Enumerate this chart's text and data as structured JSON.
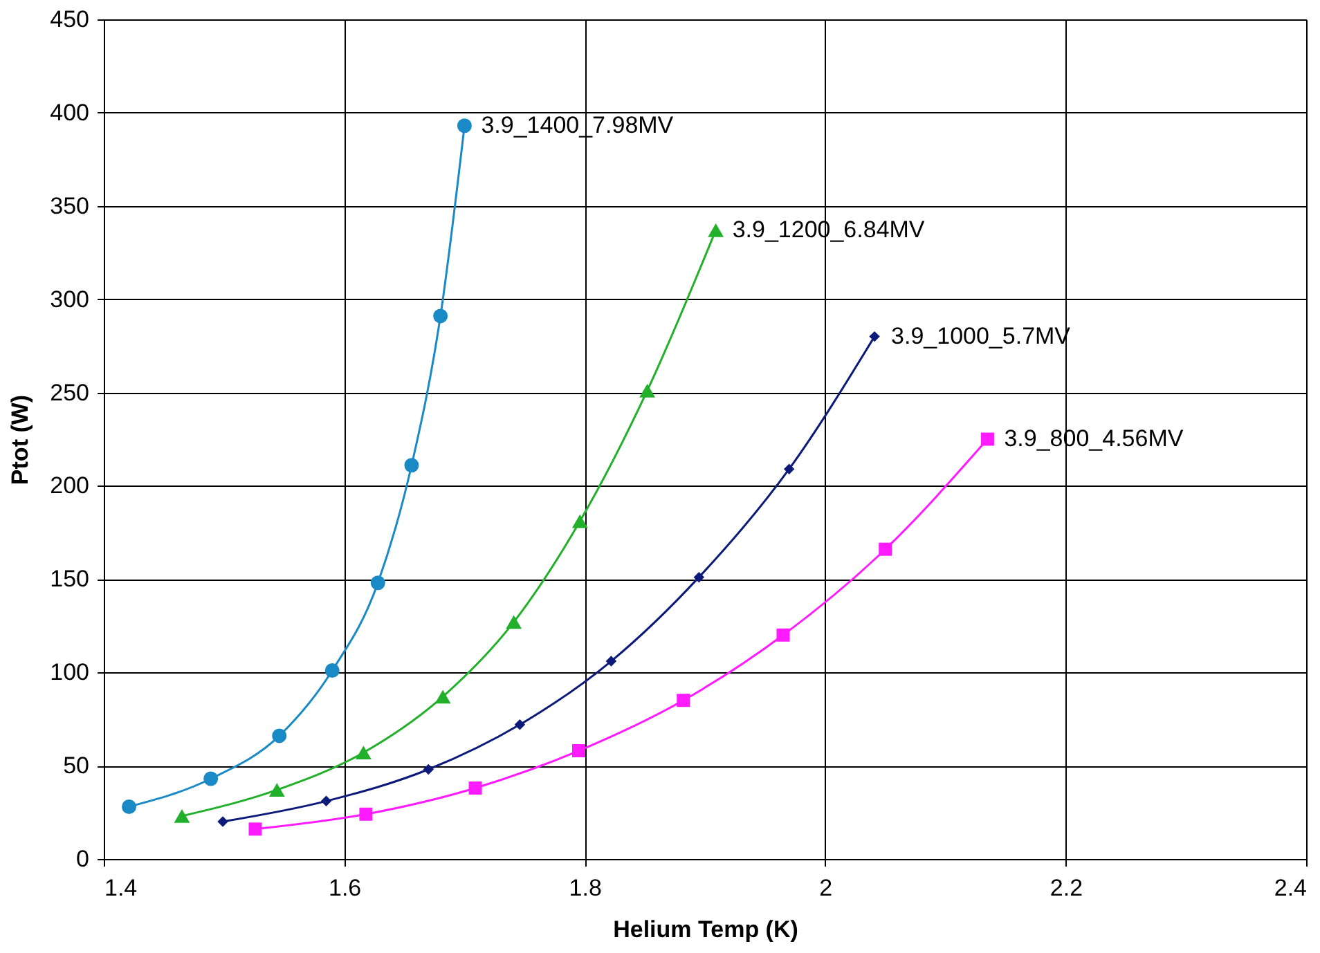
{
  "chart_data": {
    "type": "line",
    "xlabel": "Helium Temp (K)",
    "ylabel": "Ptot  (W)",
    "xlim": [
      1.4,
      2.4
    ],
    "xticks": [
      1.4,
      1.6,
      1.8,
      2,
      2.2,
      2.4
    ],
    "ylim": [
      0,
      450
    ],
    "yticks": [
      0,
      50,
      100,
      150,
      200,
      250,
      300,
      350,
      400,
      450
    ],
    "grid": true,
    "series": [
      {
        "name": "3.9_1400_7.98MV",
        "color": "#1a8ac6",
        "marker": "circle",
        "x": [
          1.421,
          1.489,
          1.546,
          1.59,
          1.628,
          1.656,
          1.68,
          1.7
        ],
        "values": [
          28,
          43,
          66,
          101,
          148,
          211,
          291,
          393
        ]
      },
      {
        "name": "3.9_1200_6.84MV",
        "color": "#22b02a",
        "marker": "triangle",
        "x": [
          1.465,
          1.544,
          1.616,
          1.682,
          1.741,
          1.796,
          1.852,
          1.909
        ],
        "values": [
          23,
          37,
          57,
          87,
          127,
          181,
          251,
          337
        ]
      },
      {
        "name": "3.9_1000_5.7MV",
        "color": "#0c1a7a",
        "marker": "diamond",
        "x": [
          1.499,
          1.585,
          1.67,
          1.746,
          1.822,
          1.895,
          1.97,
          2.041
        ],
        "values": [
          20,
          31,
          48,
          72,
          106,
          151,
          209,
          280
        ]
      },
      {
        "name": "3.9_800_4.56MV",
        "color": "#ff1aff",
        "marker": "square",
        "x": [
          1.526,
          1.618,
          1.709,
          1.795,
          1.882,
          1.965,
          2.05,
          2.135
        ],
        "values": [
          16,
          24,
          38,
          58,
          85,
          120,
          166,
          225
        ]
      }
    ]
  }
}
